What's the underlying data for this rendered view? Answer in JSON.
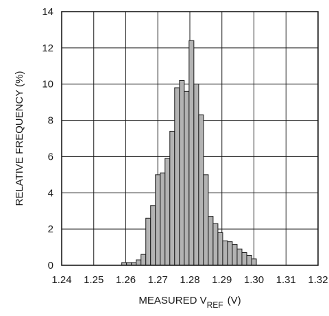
{
  "chart_data": {
    "type": "bar",
    "xlabel": "MEASURED V",
    "xlabel_subscript": "REF",
    "xlabel_unit": "(V)",
    "ylabel": "RELATIVE FREQUENCY (%)",
    "xlim": [
      1.24,
      1.32
    ],
    "ylim": [
      0,
      14
    ],
    "x_ticks": [
      "1.24",
      "1.25",
      "1.26",
      "1.27",
      "1.28",
      "1.29",
      "1.30",
      "1.31",
      "1.32"
    ],
    "y_ticks": [
      "0",
      "2",
      "4",
      "6",
      "8",
      "10",
      "12",
      "14"
    ],
    "grid": true,
    "bin_width": 0.0015,
    "x": [
      1.2595,
      1.261,
      1.2625,
      1.264,
      1.2655,
      1.267,
      1.2685,
      1.27,
      1.2715,
      1.273,
      1.2745,
      1.276,
      1.2775,
      1.279,
      1.2805,
      1.282,
      1.2835,
      1.285,
      1.2865,
      1.288,
      1.2895,
      1.291,
      1.2925,
      1.294,
      1.2955,
      1.297,
      1.2985,
      1.3
    ],
    "values": [
      0.15,
      0.15,
      0.15,
      0.3,
      0.6,
      2.6,
      3.3,
      5.0,
      5.1,
      5.9,
      7.4,
      9.8,
      10.2,
      9.6,
      12.4,
      10.0,
      8.3,
      5.0,
      2.7,
      2.3,
      1.8,
      1.35,
      1.3,
      1.15,
      0.9,
      0.7,
      0.55,
      0.35
    ]
  }
}
